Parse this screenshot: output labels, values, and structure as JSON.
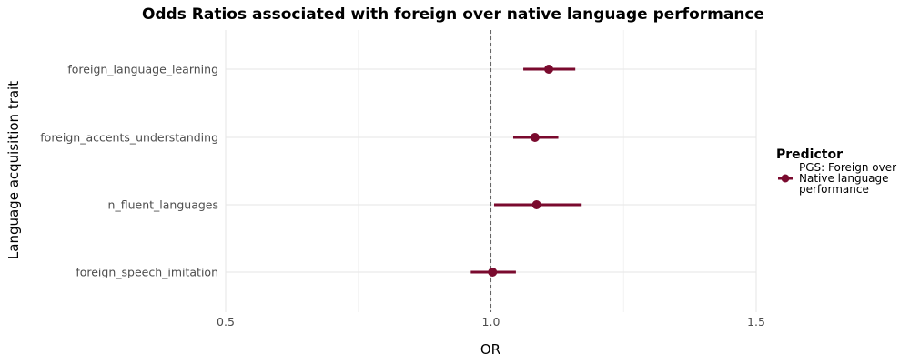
{
  "chart_data": {
    "type": "forest",
    "title": "Odds Ratios associated with foreign over native language performance",
    "xlabel": "OR",
    "ylabel": "Language acquisition trait",
    "xlim": [
      0.5,
      1.5
    ],
    "x_ticks": [
      0.5,
      1.0,
      1.5
    ],
    "x_tick_labels": [
      "0.5",
      "1.0",
      "1.5"
    ],
    "reference_line": 1.0,
    "grid": true,
    "legend_position": "right",
    "legend": {
      "title": "Predictor",
      "label_lines": [
        "PGS: Foreign over",
        "Native language",
        "performance"
      ]
    },
    "series_color": "#7a0a2e",
    "categories": [
      "foreign_language_learning",
      "foreign_accents_understanding",
      "n_fluent_languages",
      "foreign_speech_imitation"
    ],
    "or": [
      1.109,
      1.083,
      1.086,
      1.003
    ],
    "ci_lower": [
      1.061,
      1.042,
      1.006,
      0.962
    ],
    "ci_upper": [
      1.159,
      1.127,
      1.171,
      1.047
    ]
  }
}
